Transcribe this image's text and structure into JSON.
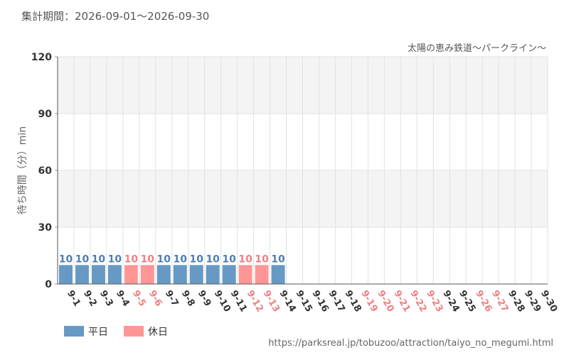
{
  "header": {
    "period_label": "集計期間：2026-09-01～2026-09-30",
    "attraction_name": "太陽の恵み鉄道～パークライン～"
  },
  "legend": {
    "weekday_label": "平日",
    "holiday_label": "休日"
  },
  "footer": {
    "source_url": "https://parksreal.jp/tobuzoo/attraction/taiyo_no_megumi.html"
  },
  "colors": {
    "weekday": "#6699c3",
    "holiday": "#ff9696",
    "weekday_text": "#4f7fae",
    "holiday_text": "#f07f7f",
    "axis_text": "#333333",
    "band": "#f4f4f4",
    "grid": "#e2e2e2"
  },
  "chart_data": {
    "type": "bar",
    "title": "",
    "xlabel": "",
    "ylabel": "待ち時間（分）min",
    "ylim": [
      0,
      120
    ],
    "yticks": [
      0,
      30,
      60,
      90,
      120
    ],
    "grid": true,
    "legend_position": "bottom-left",
    "categories": [
      "9-1",
      "9-2",
      "9-3",
      "9-4",
      "9-5",
      "9-6",
      "9-7",
      "9-8",
      "9-9",
      "9-10",
      "9-11",
      "9-12",
      "9-13",
      "9-14",
      "9-15",
      "9-16",
      "9-17",
      "9-18",
      "9-19",
      "9-20",
      "9-21",
      "9-22",
      "9-23",
      "9-24",
      "9-25",
      "9-26",
      "9-27",
      "9-28",
      "9-29",
      "9-30"
    ],
    "day_type": [
      "weekday",
      "weekday",
      "weekday",
      "weekday",
      "holiday",
      "holiday",
      "weekday",
      "weekday",
      "weekday",
      "weekday",
      "weekday",
      "holiday",
      "holiday",
      "weekday",
      "weekday",
      "weekday",
      "weekday",
      "weekday",
      "holiday",
      "holiday",
      "holiday",
      "holiday",
      "holiday",
      "weekday",
      "weekday",
      "holiday",
      "holiday",
      "weekday",
      "weekday",
      "weekday"
    ],
    "series": [
      {
        "name": "平日",
        "values": [
          10,
          10,
          10,
          10,
          null,
          null,
          10,
          10,
          10,
          10,
          10,
          null,
          null,
          10,
          null,
          null,
          null,
          null,
          null,
          null,
          null,
          null,
          null,
          null,
          null,
          null,
          null,
          null,
          null,
          null
        ]
      },
      {
        "name": "休日",
        "values": [
          null,
          null,
          null,
          null,
          10,
          10,
          null,
          null,
          null,
          null,
          null,
          10,
          10,
          null,
          null,
          null,
          null,
          null,
          null,
          null,
          null,
          null,
          null,
          null,
          null,
          null,
          null,
          null,
          null,
          null
        ]
      }
    ]
  }
}
